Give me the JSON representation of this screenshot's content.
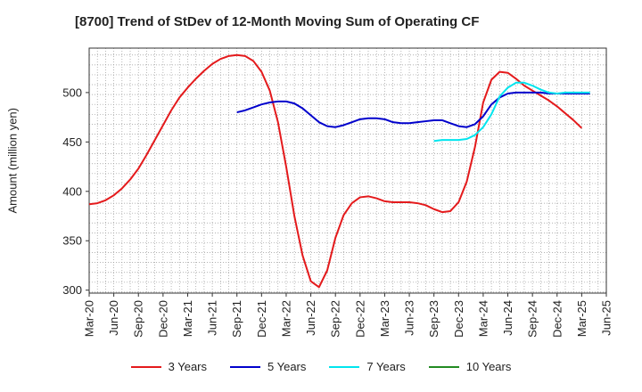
{
  "chart_data": {
    "type": "line",
    "title": "[8700]  Trend of StDev of 12-Month Moving Sum of Operating CF",
    "ylabel": "Amount (million yen)",
    "xlabel": "",
    "ylim": [
      297,
      545
    ],
    "yticks": [
      300,
      350,
      400,
      450,
      500
    ],
    "xtick_labels": [
      "Mar-20",
      "Jun-20",
      "Sep-20",
      "Dec-20",
      "Mar-21",
      "Jun-21",
      "Sep-21",
      "Dec-21",
      "Mar-22",
      "Jun-22",
      "Sep-22",
      "Dec-22",
      "Mar-23",
      "Jun-23",
      "Sep-23",
      "Dec-23",
      "Mar-24",
      "Jun-24",
      "Sep-24",
      "Dec-24",
      "Mar-25",
      "Jun-25"
    ],
    "x_start": "2020-03",
    "x_end": "2025-06",
    "grid": true,
    "legend_position": "bottom",
    "series": [
      {
        "name": "3 Years",
        "color": "#e41a1c",
        "x_start": "2020-03",
        "values": [
          387,
          388,
          391,
          396,
          403,
          412,
          423,
          437,
          452,
          467,
          482,
          495,
          505,
          514,
          522,
          529,
          534,
          537,
          538,
          537,
          532,
          521,
          502,
          470,
          425,
          375,
          335,
          309,
          303,
          320,
          353,
          376,
          388,
          394,
          395,
          393,
          390,
          389,
          389,
          389,
          388,
          386,
          382,
          379,
          380,
          389,
          410,
          445,
          490,
          513,
          521,
          520,
          514,
          507,
          502,
          497,
          492,
          486,
          479,
          472,
          464
        ]
      },
      {
        "name": "5 Years",
        "color": "#0000cc",
        "x_start": "2021-09",
        "values": [
          480,
          482,
          485,
          488,
          490,
          491,
          491,
          489,
          484,
          477,
          470,
          466,
          465,
          467,
          470,
          473,
          474,
          474,
          473,
          470,
          469,
          469,
          470,
          471,
          472,
          472,
          469,
          466,
          465,
          468,
          476,
          488,
          495,
          499,
          500,
          500,
          500,
          500,
          499,
          499,
          499,
          499,
          499,
          499
        ]
      },
      {
        "name": "7 Years",
        "color": "#00e5ee",
        "x_start": "2023-09",
        "values": [
          451,
          452,
          452,
          452,
          453,
          457,
          465,
          478,
          496,
          505,
          510,
          510,
          507,
          503,
          500,
          499,
          500,
          500,
          500,
          500
        ]
      },
      {
        "name": "10 Years",
        "color": "#228b22",
        "x_start": "2020-03",
        "values": []
      }
    ]
  }
}
